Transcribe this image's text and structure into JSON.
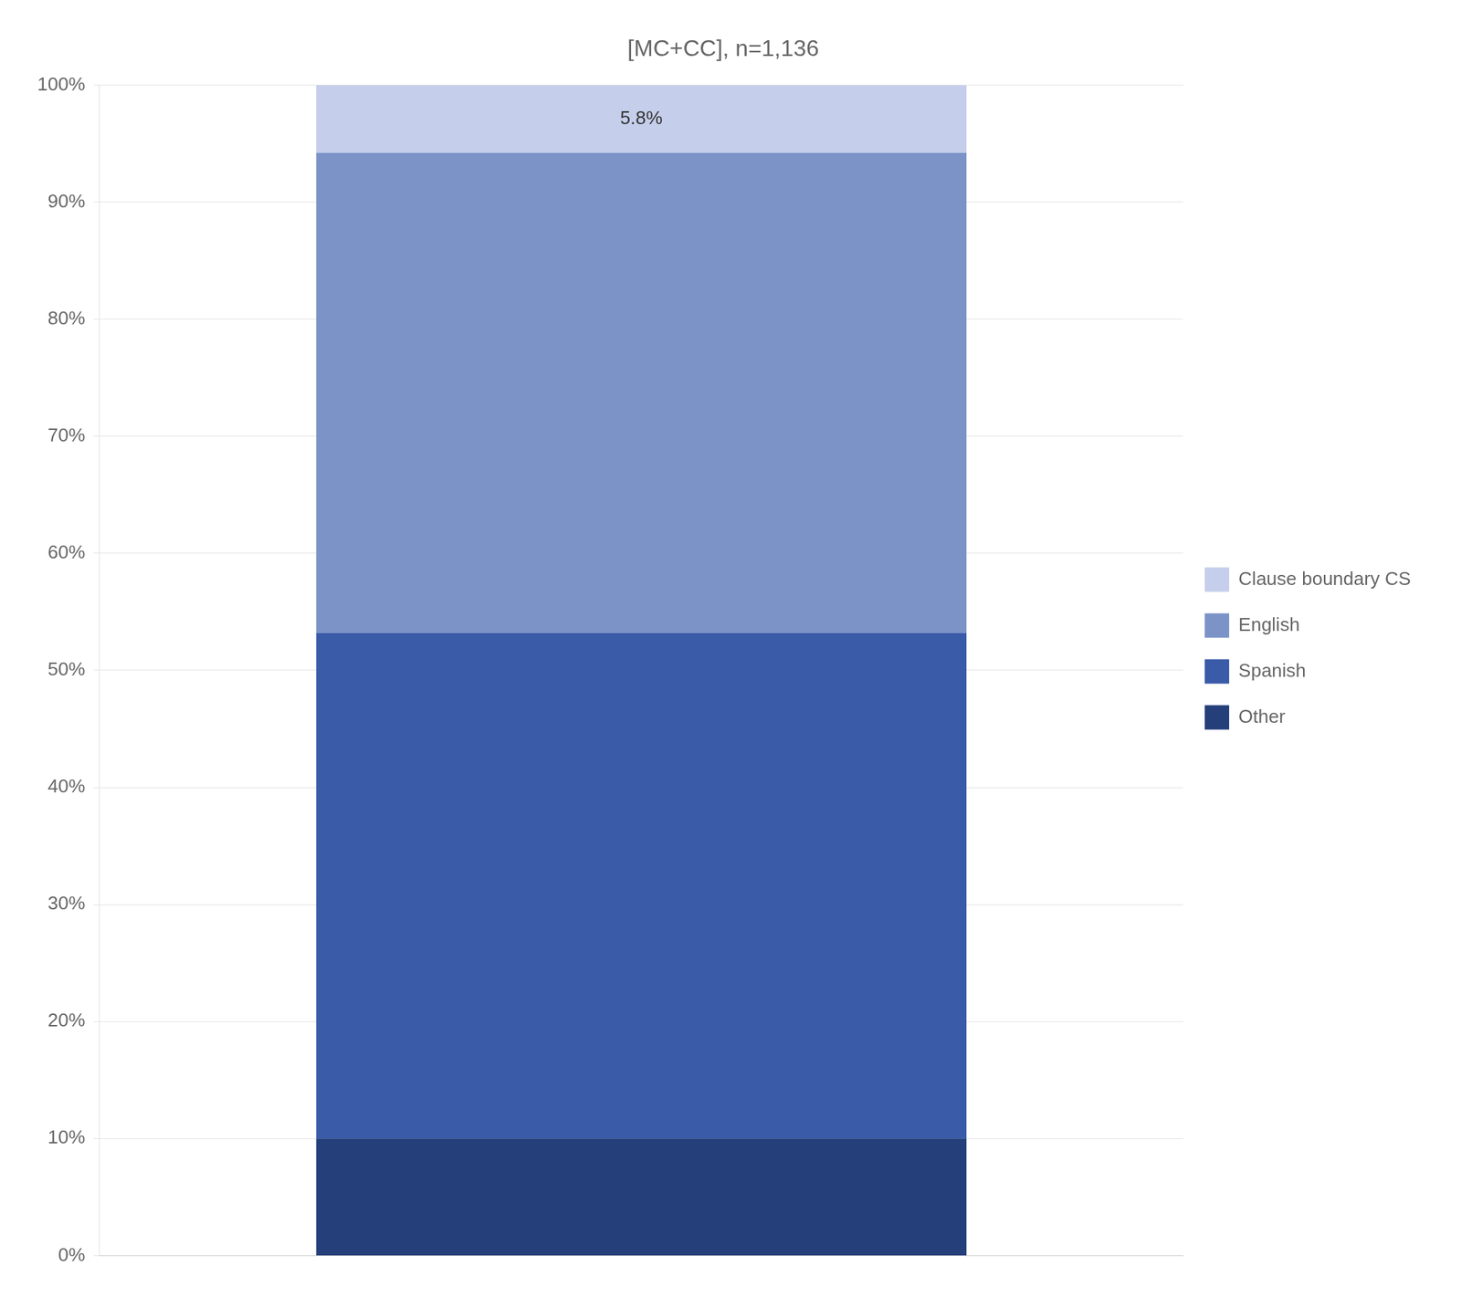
{
  "chart_data": {
    "type": "bar",
    "title": "[MC+CC], n=1,136",
    "categories": [
      null
    ],
    "stacked": true,
    "series": [
      {
        "name": "Other",
        "color": "#243F7A",
        "values": [
          10.0
        ]
      },
      {
        "name": "Spanish",
        "color": "#3A5BA8",
        "values": [
          43.2
        ]
      },
      {
        "name": "English",
        "color": "#7B93C7",
        "values": [
          41.0
        ]
      },
      {
        "name": "Clause boundary CS",
        "color": "#C5CEEA",
        "values": [
          5.8
        ],
        "value_labels": [
          "5.8%"
        ]
      }
    ],
    "ylim": [
      0,
      100
    ],
    "yticks": [
      {
        "value": 0,
        "label": "0%"
      },
      {
        "value": 10,
        "label": "10%"
      },
      {
        "value": 20,
        "label": "20%"
      },
      {
        "value": 30,
        "label": "30%"
      },
      {
        "value": 40,
        "label": "40%"
      },
      {
        "value": 50,
        "label": "50%"
      },
      {
        "value": 60,
        "label": "60%"
      },
      {
        "value": 70,
        "label": "70%"
      },
      {
        "value": 80,
        "label": "80%"
      },
      {
        "value": 90,
        "label": "90%"
      },
      {
        "value": 100,
        "label": "100%"
      }
    ],
    "grid": "y",
    "legend": "right",
    "tick_labels": "y"
  }
}
